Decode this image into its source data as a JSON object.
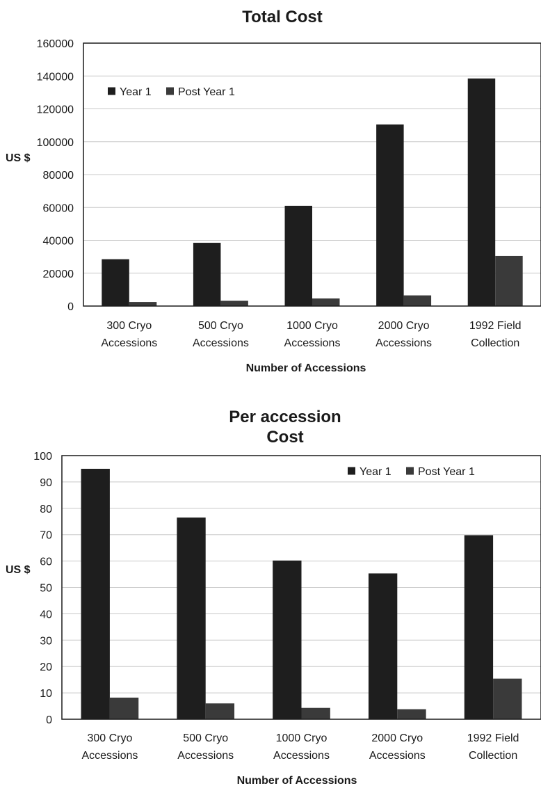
{
  "colors": {
    "year1": "#1e1e1e",
    "post_year1": "#3a3a3a",
    "grid": "#c8c8c8",
    "axis": "#1a1a1a"
  },
  "chart_data": [
    {
      "type": "bar",
      "title": "Total Cost",
      "xlabel": "Number of Accessions",
      "ylabel": "US $",
      "ylim": [
        0,
        160000
      ],
      "yticks": [
        "0",
        "20000",
        "40000",
        "60000",
        "80000",
        "100000",
        "120000",
        "140000",
        "160000"
      ],
      "categories": [
        [
          "300 Cryo",
          "Accessions"
        ],
        [
          "500 Cryo",
          "Accessions"
        ],
        [
          "1000 Cryo",
          "Accessions"
        ],
        [
          "2000 Cryo",
          "Accessions"
        ],
        [
          "1992 Field",
          "Collection"
        ]
      ],
      "series": [
        {
          "name": "Year 1",
          "values": [
            28500,
            38500,
            61000,
            110500,
            138500
          ]
        },
        {
          "name": "Post Year 1",
          "values": [
            2500,
            3200,
            4600,
            6500,
            30500
          ]
        }
      ],
      "grid": true,
      "legend": "top-left"
    },
    {
      "type": "bar",
      "title": "Per accession\nCost",
      "xlabel": "Number of Accessions",
      "ylabel": "US $",
      "ylim": [
        0,
        100
      ],
      "yticks": [
        "0",
        "10",
        "20",
        "30",
        "40",
        "50",
        "60",
        "70",
        "80",
        "90",
        "100"
      ],
      "categories": [
        [
          "300 Cryo",
          "Accessions"
        ],
        [
          "500 Cryo",
          "Accessions"
        ],
        [
          "1000 Cryo",
          "Accessions"
        ],
        [
          "2000 Cryo",
          "Accessions"
        ],
        [
          "1992 Field",
          "Collection"
        ]
      ],
      "series": [
        {
          "name": "Year 1",
          "values": [
            95,
            76.5,
            60.2,
            55.3,
            69.8
          ]
        },
        {
          "name": "Post Year 1",
          "values": [
            8.2,
            6.0,
            4.3,
            3.8,
            15.4
          ]
        }
      ],
      "grid": true,
      "legend": "top-right"
    }
  ]
}
